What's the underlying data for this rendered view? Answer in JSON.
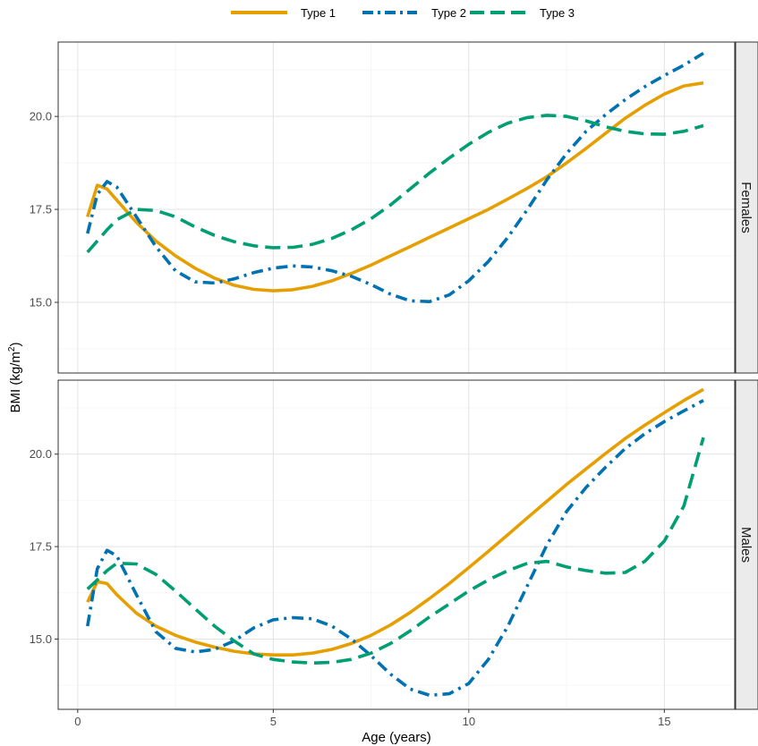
{
  "chart_data": {
    "type": "line",
    "xlabel": "Age (years)",
    "ylabel_main": "BMI (kg/m",
    "ylabel_sup": "2",
    "ylabel_close": ")",
    "xlim": [
      -0.5,
      16.8
    ],
    "x_ticks": [
      "0",
      "5",
      "10",
      "15"
    ],
    "x_tick_values": [
      0,
      5,
      10,
      15
    ],
    "y_ticks": [
      "15.0",
      "17.5",
      "20.0"
    ],
    "y_tick_values": [
      15.0,
      17.5,
      20.0
    ],
    "grid": true,
    "legend_position": "top",
    "series_styles": [
      {
        "name": "Type 1",
        "color": "#E69F00",
        "dash": "solid"
      },
      {
        "name": "Type 2",
        "color": "#0072B2",
        "dash": "dotdash"
      },
      {
        "name": "Type 3",
        "color": "#009E73",
        "dash": "longdash"
      }
    ],
    "panels": [
      {
        "strip": "Females",
        "ylim": [
          13.1,
          22.0
        ],
        "series": [
          {
            "name": "Type 1",
            "points": [
              [
                0.25,
                17.3
              ],
              [
                0.5,
                18.15
              ],
              [
                0.75,
                18.05
              ],
              [
                1,
                17.75
              ],
              [
                1.5,
                17.15
              ],
              [
                2,
                16.65
              ],
              [
                2.5,
                16.25
              ],
              [
                3,
                15.92
              ],
              [
                3.5,
                15.65
              ],
              [
                4,
                15.46
              ],
              [
                4.5,
                15.35
              ],
              [
                5,
                15.31
              ],
              [
                5.5,
                15.34
              ],
              [
                6,
                15.43
              ],
              [
                6.5,
                15.58
              ],
              [
                7,
                15.78
              ],
              [
                7.5,
                16.0
              ],
              [
                8,
                16.25
              ],
              [
                8.5,
                16.5
              ],
              [
                9,
                16.75
              ],
              [
                9.5,
                17.0
              ],
              [
                10,
                17.25
              ],
              [
                10.5,
                17.5
              ],
              [
                11,
                17.78
              ],
              [
                11.5,
                18.07
              ],
              [
                12,
                18.38
              ],
              [
                12.5,
                18.75
              ],
              [
                13,
                19.14
              ],
              [
                13.5,
                19.55
              ],
              [
                14,
                19.95
              ],
              [
                14.5,
                20.3
              ],
              [
                15,
                20.6
              ],
              [
                15.5,
                20.82
              ],
              [
                16,
                20.9
              ]
            ]
          },
          {
            "name": "Type 2",
            "points": [
              [
                0.25,
                16.85
              ],
              [
                0.5,
                17.9
              ],
              [
                0.75,
                18.25
              ],
              [
                1,
                18.1
              ],
              [
                1.5,
                17.3
              ],
              [
                2,
                16.5
              ],
              [
                2.5,
                15.85
              ],
              [
                3,
                15.55
              ],
              [
                3.5,
                15.52
              ],
              [
                4,
                15.63
              ],
              [
                4.5,
                15.8
              ],
              [
                5,
                15.92
              ],
              [
                5.5,
                15.98
              ],
              [
                6,
                15.95
              ],
              [
                6.5,
                15.85
              ],
              [
                7,
                15.7
              ],
              [
                7.5,
                15.48
              ],
              [
                8,
                15.22
              ],
              [
                8.5,
                15.04
              ],
              [
                9,
                15.02
              ],
              [
                9.5,
                15.2
              ],
              [
                10,
                15.58
              ],
              [
                10.5,
                16.1
              ],
              [
                11,
                16.75
              ],
              [
                11.5,
                17.5
              ],
              [
                12,
                18.3
              ],
              [
                12.5,
                19.0
              ],
              [
                13,
                19.6
              ],
              [
                13.5,
                20.05
              ],
              [
                14,
                20.45
              ],
              [
                14.5,
                20.8
              ],
              [
                15,
                21.1
              ],
              [
                15.5,
                21.38
              ],
              [
                16,
                21.7
              ]
            ]
          },
          {
            "name": "Type 3",
            "points": [
              [
                0.25,
                16.35
              ],
              [
                0.5,
                16.65
              ],
              [
                0.75,
                16.95
              ],
              [
                1,
                17.22
              ],
              [
                1.5,
                17.5
              ],
              [
                2,
                17.47
              ],
              [
                2.5,
                17.3
              ],
              [
                3,
                17.03
              ],
              [
                3.5,
                16.8
              ],
              [
                4,
                16.63
              ],
              [
                4.5,
                16.52
              ],
              [
                5,
                16.47
              ],
              [
                5.5,
                16.48
              ],
              [
                6,
                16.56
              ],
              [
                6.5,
                16.72
              ],
              [
                7,
                16.95
              ],
              [
                7.5,
                17.25
              ],
              [
                8,
                17.62
              ],
              [
                8.5,
                18.05
              ],
              [
                9,
                18.48
              ],
              [
                9.5,
                18.88
              ],
              [
                10,
                19.25
              ],
              [
                10.5,
                19.57
              ],
              [
                11,
                19.82
              ],
              [
                11.5,
                19.97
              ],
              [
                12,
                20.03
              ],
              [
                12.5,
                20.0
              ],
              [
                13,
                19.88
              ],
              [
                13.5,
                19.72
              ],
              [
                14,
                19.6
              ],
              [
                14.5,
                19.53
              ],
              [
                15,
                19.52
              ],
              [
                15.5,
                19.6
              ],
              [
                16,
                19.75
              ]
            ]
          }
        ]
      },
      {
        "strip": "Males",
        "ylim": [
          13.1,
          22.0
        ],
        "series": [
          {
            "name": "Type 1",
            "points": [
              [
                0.25,
                16.0
              ],
              [
                0.5,
                16.55
              ],
              [
                0.75,
                16.5
              ],
              [
                1,
                16.2
              ],
              [
                1.5,
                15.7
              ],
              [
                2,
                15.35
              ],
              [
                2.5,
                15.1
              ],
              [
                3,
                14.92
              ],
              [
                3.5,
                14.78
              ],
              [
                4,
                14.67
              ],
              [
                4.5,
                14.6
              ],
              [
                5,
                14.57
              ],
              [
                5.5,
                14.57
              ],
              [
                6,
                14.62
              ],
              [
                6.5,
                14.72
              ],
              [
                7,
                14.88
              ],
              [
                7.5,
                15.1
              ],
              [
                8,
                15.38
              ],
              [
                8.5,
                15.72
              ],
              [
                9,
                16.1
              ],
              [
                9.5,
                16.5
              ],
              [
                10,
                16.93
              ],
              [
                10.5,
                17.37
              ],
              [
                11,
                17.82
              ],
              [
                11.5,
                18.28
              ],
              [
                12,
                18.73
              ],
              [
                12.5,
                19.18
              ],
              [
                13,
                19.6
              ],
              [
                13.5,
                20.02
              ],
              [
                14,
                20.42
              ],
              [
                14.5,
                20.78
              ],
              [
                15,
                21.12
              ],
              [
                15.5,
                21.45
              ],
              [
                16,
                21.75
              ]
            ]
          },
          {
            "name": "Type 2",
            "points": [
              [
                0.25,
                15.35
              ],
              [
                0.5,
                16.9
              ],
              [
                0.75,
                17.4
              ],
              [
                1,
                17.25
              ],
              [
                1.5,
                16.2
              ],
              [
                2,
                15.2
              ],
              [
                2.5,
                14.75
              ],
              [
                3,
                14.65
              ],
              [
                3.5,
                14.72
              ],
              [
                4,
                14.95
              ],
              [
                4.5,
                15.3
              ],
              [
                5,
                15.52
              ],
              [
                5.5,
                15.58
              ],
              [
                6,
                15.55
              ],
              [
                6.5,
                15.35
              ],
              [
                7,
                15.0
              ],
              [
                7.5,
                14.55
              ],
              [
                8,
                14.05
              ],
              [
                8.5,
                13.65
              ],
              [
                9,
                13.48
              ],
              [
                9.5,
                13.52
              ],
              [
                10,
                13.8
              ],
              [
                10.5,
                14.45
              ],
              [
                11,
                15.35
              ],
              [
                11.5,
                16.45
              ],
              [
                12,
                17.55
              ],
              [
                12.5,
                18.45
              ],
              [
                13,
                19.1
              ],
              [
                13.5,
                19.65
              ],
              [
                14,
                20.15
              ],
              [
                14.5,
                20.55
              ],
              [
                15,
                20.88
              ],
              [
                15.5,
                21.17
              ],
              [
                16,
                21.45
              ]
            ]
          },
          {
            "name": "Type 3",
            "points": [
              [
                0.25,
                16.35
              ],
              [
                0.5,
                16.6
              ],
              [
                0.75,
                16.85
              ],
              [
                1,
                17.05
              ],
              [
                1.5,
                17.03
              ],
              [
                2,
                16.75
              ],
              [
                2.5,
                16.3
              ],
              [
                3,
                15.82
              ],
              [
                3.5,
                15.35
              ],
              [
                4,
                14.95
              ],
              [
                4.5,
                14.6
              ],
              [
                5,
                14.45
              ],
              [
                5.5,
                14.38
              ],
              [
                6,
                14.35
              ],
              [
                6.5,
                14.37
              ],
              [
                7,
                14.45
              ],
              [
                7.5,
                14.62
              ],
              [
                8,
                14.88
              ],
              [
                8.5,
                15.22
              ],
              [
                9,
                15.6
              ],
              [
                9.5,
                15.95
              ],
              [
                10,
                16.3
              ],
              [
                10.5,
                16.6
              ],
              [
                11,
                16.85
              ],
              [
                11.5,
                17.05
              ],
              [
                12,
                17.1
              ],
              [
                12.5,
                16.95
              ],
              [
                13,
                16.85
              ],
              [
                13.5,
                16.78
              ],
              [
                14,
                16.8
              ],
              [
                14.5,
                17.1
              ],
              [
                15,
                17.65
              ],
              [
                15.5,
                18.6
              ],
              [
                16,
                20.45
              ]
            ]
          }
        ]
      }
    ]
  }
}
